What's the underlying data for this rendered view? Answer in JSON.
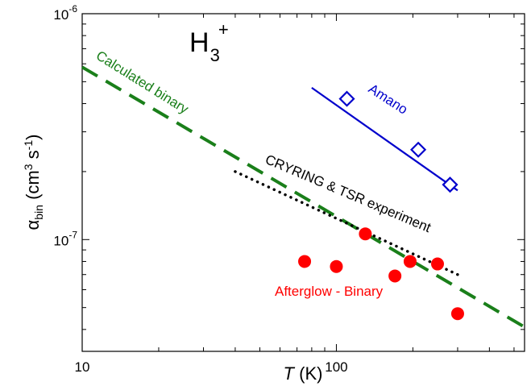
{
  "chart_data": {
    "type": "scatter",
    "title": "H3+",
    "title_parts": {
      "base": "H",
      "sub": "3",
      "sup": "+"
    },
    "xlabel": {
      "italic": "T",
      "rest": " (K)"
    },
    "ylabel": {
      "alpha": "α",
      "sub": "bin",
      "unit_open": " (cm",
      "sup1": "3",
      "mid": " s",
      "sup2": "-1",
      "close": ")"
    },
    "x_scale": "log",
    "y_scale": "log",
    "xlim": [
      10,
      550
    ],
    "ylim": [
      3.2e-08,
      1e-06
    ],
    "x_tick_labels": [
      {
        "value": 10,
        "label": "10"
      },
      {
        "value": 100,
        "label": "100"
      }
    ],
    "y_tick_labels": [
      {
        "value": 1e-06,
        "base": "10",
        "exp": "-6"
      },
      {
        "value": 1e-07,
        "base": "10",
        "exp": "-7"
      }
    ],
    "grid": false,
    "series": [
      {
        "name": "Calculated binary",
        "kind": "line",
        "style": "dashed",
        "color": "#1a7f1a",
        "x": [
          10,
          550
        ],
        "y": [
          5.8e-07,
          4.1e-08
        ]
      },
      {
        "name": "CRYRING & TSR experiment",
        "kind": "line",
        "style": "dotted",
        "color": "#000000",
        "x": [
          40,
          300
        ],
        "y": [
          2e-07,
          7e-08
        ]
      },
      {
        "name": "Amano",
        "kind": "line+markers",
        "marker": "diamond",
        "color": "#0000cc",
        "line_x": [
          80,
          300
        ],
        "line_y": [
          4.7e-07,
          1.65e-07
        ],
        "x": [
          110,
          210,
          280
        ],
        "y": [
          4.2e-07,
          2.5e-07,
          1.75e-07
        ]
      },
      {
        "name": "Afterglow - Binary",
        "kind": "markers",
        "marker": "circle",
        "color": "#ff0000",
        "x": [
          75,
          100,
          130,
          170,
          195,
          250,
          300
        ],
        "y": [
          8e-08,
          7.6e-08,
          1.06e-07,
          6.9e-08,
          8e-08,
          7.8e-08,
          4.7e-08
        ]
      }
    ],
    "annotations": [
      {
        "text": "Calculated binary",
        "color": "#1a7f1a"
      },
      {
        "text": "Amano",
        "color": "#0000cc"
      },
      {
        "text": "CRYRING & TSR experiment",
        "color": "#000000"
      },
      {
        "text": "Afterglow - Binary",
        "color": "#ff0000"
      }
    ]
  }
}
